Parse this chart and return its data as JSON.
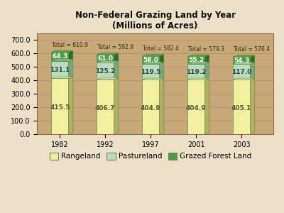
{
  "title": "Non-Federal Grazing Land by Year\n(Millions of Acres)",
  "years": [
    "1982",
    "1992",
    "1997",
    "2001",
    "2003"
  ],
  "rangeland": [
    415.5,
    406.7,
    404.9,
    404.9,
    405.1
  ],
  "pastureland": [
    131.1,
    125.2,
    119.5,
    119.2,
    117.0
  ],
  "grazed_forest": [
    64.3,
    61.0,
    58.0,
    55.2,
    54.3
  ],
  "totals": [
    "Total = 610.9",
    "Total = 592.9",
    "Total = 582.4",
    "Total = 579.3",
    "Total = 576.4"
  ],
  "rangeland_color": "#f0f0a0",
  "rangeland_side_color": "#b0b060",
  "pastureland_color": "#b8dcc0",
  "pastureland_side_color": "#78a878",
  "grazed_forest_color": "#4a9e44",
  "grazed_forest_side_color": "#2a6e24",
  "bar_edge_color": "#6a8a50",
  "background_color": "#ede0c8",
  "plot_bg_color": "#c8a878",
  "floor_color": "#b89060",
  "ylabel_ticks": [
    0.0,
    100.0,
    200.0,
    300.0,
    400.0,
    500.0,
    600.0,
    700.0
  ],
  "title_fontsize": 8.5,
  "tick_fontsize": 7,
  "legend_fontsize": 7.5,
  "annotation_fontsize": 6.5,
  "total_fontsize": 5.5
}
